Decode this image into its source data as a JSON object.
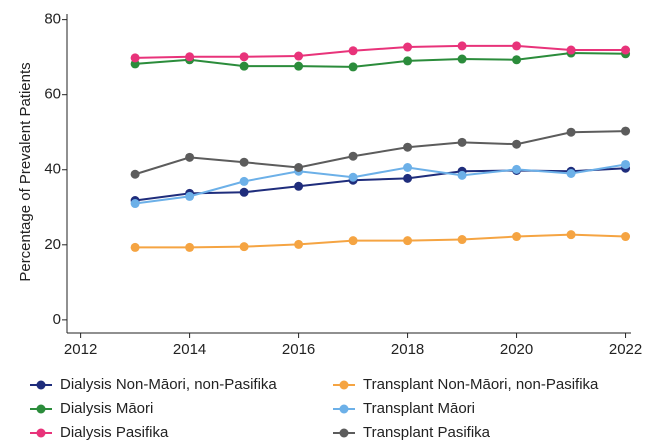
{
  "chart_data": {
    "type": "line",
    "y_label": "Percentage of Prevalent Patients",
    "x": [
      2013,
      2014,
      2015,
      2016,
      2017,
      2018,
      2019,
      2020,
      2021,
      2022
    ],
    "xlim": [
      2011.75,
      2022.1
    ],
    "xticks": [
      2012,
      2014,
      2016,
      2018,
      2020,
      2022
    ],
    "ylim": [
      -3.5,
      81.5
    ],
    "yticks": [
      0,
      20,
      40,
      60,
      80
    ],
    "legend": "bottom",
    "series": [
      {
        "name": "Dialysis Non-Māori, non-Pasifika",
        "color": "#1f2d7c",
        "values": [
          31.8,
          33.7,
          34,
          35.6,
          37.2,
          37.7,
          39.6,
          39.8,
          39.6,
          40.4
        ]
      },
      {
        "name": "Dialysis Māori",
        "color": "#2b8c3b",
        "values": [
          68.2,
          69.3,
          67.6,
          67.6,
          67.4,
          69,
          69.5,
          69.3,
          71.1,
          70.9
        ]
      },
      {
        "name": "Dialysis Pasifika",
        "color": "#e8337a",
        "values": [
          69.8,
          70.1,
          70.1,
          70.3,
          71.7,
          72.7,
          73,
          73,
          71.9,
          71.9
        ]
      },
      {
        "name": "Transplant Non-Māori, non-Pasifika",
        "color": "#f5a442",
        "values": [
          19.3,
          19.3,
          19.5,
          20.1,
          21.1,
          21.1,
          21.4,
          22.2,
          22.7,
          22.2
        ]
      },
      {
        "name": "Transplant Māori",
        "color": "#6cb0e8",
        "values": [
          31,
          32.9,
          36.9,
          39.6,
          38,
          40.6,
          38.5,
          40.1,
          39,
          41.4
        ]
      },
      {
        "name": "Transplant Pasifika",
        "color": "#5c5c5c",
        "values": [
          38.8,
          43.3,
          42,
          40.6,
          43.6,
          46,
          47.3,
          46.8,
          50,
          50.3
        ]
      }
    ]
  }
}
